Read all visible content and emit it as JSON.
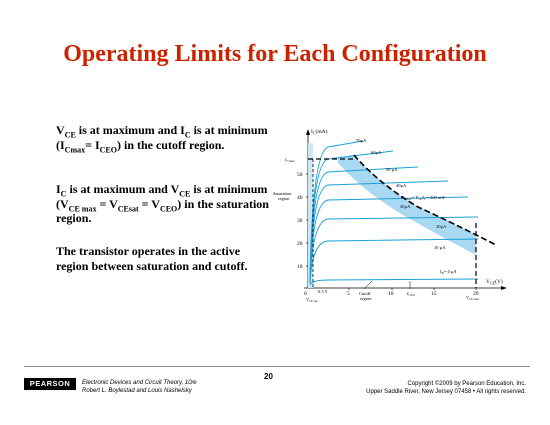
{
  "slide": {
    "title": "Operating Limits for Each Configuration",
    "page_number": "20"
  },
  "paragraphs": {
    "p1": {
      "line1": "V",
      "line1_sub": "CE",
      "text1": " is at maximum and I",
      "sub2": "C",
      "text2": " is at minimum (I",
      "sub3": "Cmax",
      "text3": "= I",
      "sub4": "CEO",
      "text4": ") in the cutoff region."
    },
    "p2": {
      "a": "I",
      "a_sub": "C",
      "b": " is at maximum and V",
      "b_sub": "CE",
      "c": " is at minimum (V",
      "c_sub": "CE max",
      "d": " = V",
      "d_sub": "CEsat",
      "e": " = V",
      "e_sub": "CEO",
      "f": ") in the saturation region."
    },
    "p3": "The transistor operates in the active region between saturation and cutoff."
  },
  "graph": {
    "y_axis_label": "I",
    "y_axis_label_sub": "C",
    "y_axis_unit": "(mA)",
    "x_axis_label": "V",
    "x_axis_label_sub": "CE",
    "x_axis_unit": "(V)",
    "y_ticks": [
      "10",
      "20",
      "30",
      "40",
      "50"
    ],
    "x_ticks": [
      "0",
      "5",
      "10",
      "15",
      "20"
    ],
    "icmax_label": "I",
    "icmax_sub": "Cmax",
    "saturation_label_1": "Saturation",
    "saturation_label_2": "region",
    "cutoff_label_1": "Cutoff",
    "cutoff_label_2": "region",
    "iceo_label": "I",
    "iceo_sub": "CEO",
    "vcesat_label": "V",
    "vcesat_sub": "CE sat",
    "vcemax_label": "V",
    "vcemax_sub": "CE max",
    "sat_voltage_label": "0.3 V",
    "pcmax_label": "P",
    "pcmax_sub": "Cmax",
    "pcmax_eq": "= V",
    "pcmax_eq_sub": "CE",
    "pcmax_eq2": "I",
    "pcmax_eq2_sub": "C",
    "pcmax_value": "= 300 mW",
    "curve_labels": [
      "70µA",
      "60µA",
      "50 µA",
      "40µA",
      "30µA",
      "20µA",
      "10 µA",
      "I",
      "= 0 µA"
    ],
    "ib_zero_sub": "B",
    "colors": {
      "safe_region": "#a9d8f2",
      "curve": "#1aa0d8",
      "dashed": "#000000"
    }
  },
  "footer": {
    "logo": "PEARSON",
    "book_line": "Electronic Devices and Circuit Theory, 10/e",
    "authors_line": "Robert L. Boylestad and Louis Nashelsky",
    "copyright_line": "Copyright ©2009 by Pearson Education, Inc.",
    "address_line": "Upper Saddle River, New Jersey 07458 • All rights reserved."
  }
}
